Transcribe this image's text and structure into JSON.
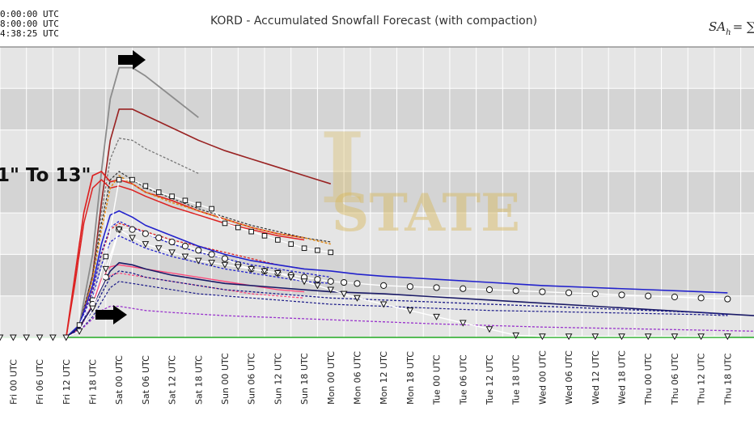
{
  "header": {
    "timestamps": [
      "0:00:00 UTC",
      "8:00:00 UTC",
      "4:38:25 UTC"
    ],
    "formula": "SA",
    "formula_sub": "h",
    "formula_rhs": "= ∑"
  },
  "annotation": {
    "text": "1\" To 13\""
  },
  "watermark": {
    "text": "STATE",
    "letter": "I"
  },
  "colors": {
    "plot_bg": "#e5e5e5",
    "band_dark": "#d4d4d4",
    "grid": "#ffffff",
    "zero_line": "#22aa22"
  },
  "chart_data": {
    "type": "line",
    "title": "KORD - Accumulated Snowfall Forecast (with compaction)",
    "xlabel": "",
    "ylabel": "",
    "x_ticks": [
      "Thu 18 UTC",
      "Fri 00 UTC",
      "Fri 06 UTC",
      "Fri 12 UTC",
      "Fri 18 UTC",
      "Sat 00 UTC",
      "Sat 06 UTC",
      "Sat 12 UTC",
      "Sat 18 UTC",
      "Sun 00 UTC",
      "Sun 06 UTC",
      "Sun 12 UTC",
      "Sun 18 UTC",
      "Mon 00 UTC",
      "Mon 06 UTC",
      "Mon 12 UTC",
      "Mon 18 UTC",
      "Tue 00 UTC",
      "Tue 06 UTC",
      "Tue 12 UTC",
      "Tue 18 UTC",
      "Wed 00 UTC",
      "Wed 06 UTC",
      "Wed 12 UTC",
      "Wed 18 UTC",
      "Thu 00 UTC",
      "Thu 06 UTC",
      "Thu 12 UTC",
      "Thu 18 UTC"
    ],
    "x_unit": "hours after Thu 18 UTC",
    "x_range": [
      -3,
      168
    ],
    "y_range": [
      0,
      14
    ],
    "grid": true,
    "legend": "none",
    "series": [
      {
        "color": "#8c8c8c",
        "width": 1.8,
        "dash": "",
        "x": [
          12,
          15,
          18,
          20,
          22,
          24,
          27,
          30,
          36,
          42
        ],
        "y": [
          0,
          0.6,
          4,
          8,
          11.5,
          13,
          13,
          12.6,
          11.6,
          10.6
        ]
      },
      {
        "color": "#992222",
        "width": 1.6,
        "dash": "",
        "x": [
          12,
          15,
          18,
          20,
          22,
          24,
          27,
          30,
          36,
          42,
          48,
          54,
          60,
          66,
          72
        ],
        "y": [
          0,
          0.5,
          3,
          6.5,
          9.5,
          11,
          11,
          10.7,
          10.1,
          9.5,
          9,
          8.6,
          8.2,
          7.8,
          7.4
        ]
      },
      {
        "color": "#777777",
        "width": 1.3,
        "dash": "3,2",
        "x": [
          12,
          15,
          18,
          20,
          22,
          24,
          27,
          30,
          36,
          42
        ],
        "y": [
          0,
          0.5,
          3,
          6,
          8.6,
          9.6,
          9.5,
          9.1,
          8.5,
          7.9
        ]
      },
      {
        "color": "#dd2222",
        "width": 1.7,
        "dash": "",
        "x": [
          12,
          14,
          16,
          18,
          20,
          22,
          24,
          27,
          30,
          36,
          42,
          48,
          54,
          60,
          66
        ],
        "y": [
          0,
          3,
          6,
          7.8,
          8,
          7.5,
          7.6,
          7.4,
          7,
          6.6,
          6.1,
          5.7,
          5.3,
          5,
          4.8
        ]
      },
      {
        "color": "#dd2222",
        "width": 1.5,
        "dash": "",
        "x": [
          12,
          14,
          16,
          18,
          20,
          22,
          24,
          27,
          30,
          36,
          42,
          48,
          54,
          60,
          66
        ],
        "y": [
          0,
          2.6,
          5.5,
          7.2,
          7.6,
          7.2,
          7.3,
          7.1,
          6.8,
          6.3,
          5.9,
          5.5,
          5.2,
          4.9,
          4.7
        ]
      },
      {
        "color": "#333333",
        "width": 1.2,
        "dash": "3,2",
        "x": [
          12,
          15,
          18,
          20,
          22,
          24,
          27,
          30,
          36,
          42,
          48,
          54,
          60,
          66,
          72
        ],
        "y": [
          0,
          0.6,
          3,
          5.5,
          7.6,
          8,
          7.6,
          7.2,
          6.7,
          6.2,
          5.8,
          5.4,
          5.1,
          4.8,
          4.6
        ]
      },
      {
        "color": "#e08c1e",
        "width": 1.6,
        "dash": "3,2",
        "x": [
          12,
          15,
          18,
          20,
          22,
          24,
          27,
          30,
          36,
          42,
          48,
          54,
          60,
          66,
          72
        ],
        "y": [
          0,
          0.5,
          2.8,
          5.2,
          7.2,
          7.8,
          7.4,
          7,
          6.5,
          6.1,
          5.7,
          5.3,
          5,
          4.8,
          4.5
        ]
      },
      {
        "color": "#dd2222",
        "width": 1.3,
        "dash": "3,2",
        "x": [
          12,
          15,
          18,
          20,
          22,
          24,
          27,
          30,
          36,
          42,
          48,
          54,
          60,
          66
        ],
        "y": [
          0,
          0.5,
          2.3,
          4,
          5.2,
          5.5,
          5.3,
          5.1,
          4.7,
          4.4,
          4.1,
          3.8,
          3.5,
          3.3
        ]
      },
      {
        "color": "#ff4477",
        "width": 1.3,
        "dash": "",
        "x": [
          12,
          15,
          18,
          20,
          22,
          24,
          27,
          30,
          36,
          42,
          48,
          54,
          60,
          66
        ],
        "y": [
          0,
          0.4,
          1.6,
          2.8,
          3.4,
          3.5,
          3.4,
          3.3,
          3.1,
          2.9,
          2.7,
          2.5,
          2.3,
          2.2
        ]
      },
      {
        "color": "#ff4477",
        "width": 1.2,
        "dash": "3,2",
        "x": [
          12,
          15,
          18,
          20,
          22,
          24,
          27,
          30,
          36,
          42,
          48,
          54,
          60,
          66
        ],
        "y": [
          0,
          0.3,
          1.4,
          2.5,
          3,
          3.1,
          3,
          2.9,
          2.7,
          2.5,
          2.3,
          2.1,
          2,
          1.9
        ]
      },
      {
        "color": "#2222cc",
        "width": 1.6,
        "dash": "",
        "x": [
          12,
          15,
          18,
          20,
          22,
          24,
          27,
          30,
          36,
          42,
          48,
          54,
          60,
          66,
          72,
          78,
          84,
          96,
          108,
          120,
          132,
          144,
          156,
          162
        ],
        "y": [
          0,
          0.6,
          2.5,
          4.5,
          5.9,
          6.1,
          5.8,
          5.4,
          4.9,
          4.4,
          4,
          3.7,
          3.5,
          3.3,
          3.2,
          3.05,
          2.95,
          2.8,
          2.65,
          2.5,
          2.4,
          2.3,
          2.2,
          2.15
        ]
      },
      {
        "color": "#2222cc",
        "width": 1.3,
        "dash": "3,2",
        "x": [
          12,
          15,
          18,
          20,
          22,
          24,
          27,
          30,
          36,
          42,
          48,
          54,
          60,
          66,
          72
        ],
        "y": [
          0,
          0.5,
          2.2,
          4.1,
          5.3,
          5.6,
          5.3,
          5,
          4.5,
          4.1,
          3.8,
          3.5,
          3.3,
          3.1,
          2.9
        ]
      },
      {
        "color": "#2222cc",
        "width": 1.3,
        "dash": "3,2",
        "x": [
          12,
          15,
          18,
          20,
          22,
          24,
          27,
          30,
          36,
          42,
          48,
          54,
          60,
          66,
          72
        ],
        "y": [
          0,
          0.4,
          1.9,
          3.5,
          4.6,
          4.9,
          4.6,
          4.3,
          3.9,
          3.6,
          3.3,
          3.1,
          2.9,
          2.7,
          2.6
        ]
      },
      {
        "color": "#1a1a66",
        "width": 1.6,
        "dash": "",
        "x": [
          12,
          15,
          18,
          20,
          22,
          24,
          27,
          30,
          36,
          42,
          48,
          60,
          72,
          84,
          96,
          108,
          120,
          132,
          144,
          156,
          168
        ],
        "y": [
          0,
          0.5,
          1.5,
          2.4,
          3.2,
          3.6,
          3.5,
          3.3,
          3,
          2.8,
          2.6,
          2.4,
          2.2,
          2.1,
          1.95,
          1.8,
          1.65,
          1.5,
          1.35,
          1.2,
          1.05
        ]
      },
      {
        "color": "#1a1a88",
        "width": 1.3,
        "dash": "3,2",
        "x": [
          12,
          15,
          18,
          20,
          22,
          24,
          27,
          30,
          36,
          42,
          48,
          60,
          72,
          84,
          96,
          108,
          120,
          132,
          144,
          156,
          162
        ],
        "y": [
          0,
          0.4,
          1.3,
          2.1,
          2.9,
          3.2,
          3.1,
          2.9,
          2.7,
          2.5,
          2.3,
          2.1,
          1.9,
          1.8,
          1.7,
          1.6,
          1.5,
          1.4,
          1.3,
          1.2,
          1.1
        ]
      },
      {
        "color": "#1a1a88",
        "width": 1.2,
        "dash": "3,2",
        "x": [
          12,
          15,
          18,
          20,
          22,
          24,
          27,
          30,
          36,
          42,
          48,
          60,
          72,
          84,
          96,
          108,
          120,
          132,
          144,
          156,
          162
        ],
        "y": [
          0,
          0.3,
          1,
          1.7,
          2.4,
          2.7,
          2.6,
          2.5,
          2.3,
          2.1,
          2,
          1.8,
          1.6,
          1.5,
          1.4,
          1.3,
          1.25,
          1.2,
          1.15,
          1.1,
          1.05
        ]
      },
      {
        "color": "#9933cc",
        "width": 1.3,
        "dash": "3,2",
        "x": [
          12,
          15,
          18,
          20,
          22,
          24,
          27,
          30,
          36,
          48,
          60,
          72,
          96,
          120,
          144,
          168
        ],
        "y": [
          0,
          0.3,
          0.9,
          1.3,
          1.5,
          1.5,
          1.4,
          1.3,
          1.2,
          1.05,
          0.95,
          0.85,
          0.65,
          0.5,
          0.4,
          0.3
        ]
      },
      {
        "color": "#ffffff",
        "width": 1.4,
        "dash": "",
        "marker": "square",
        "x": [
          15,
          18,
          21,
          24,
          27,
          30,
          33,
          36,
          39,
          42,
          45,
          48,
          51,
          54,
          57,
          60,
          63,
          66,
          69,
          72
        ],
        "y": [
          0.6,
          1.8,
          3.9,
          7.6,
          7.6,
          7.3,
          7,
          6.8,
          6.6,
          6.4,
          6.2,
          5.5,
          5.3,
          5.1,
          4.9,
          4.7,
          4.5,
          4.3,
          4.2,
          4.1
        ]
      },
      {
        "color": "#ffffff",
        "width": 1.4,
        "dash": "",
        "marker": "circle",
        "x": [
          18,
          21,
          24,
          27,
          30,
          33,
          36,
          39,
          42,
          45,
          48,
          51,
          54,
          57,
          60,
          63,
          66,
          69,
          72,
          75,
          78,
          84,
          90,
          96,
          102,
          108,
          114,
          120,
          126,
          132,
          138,
          144,
          150,
          156,
          162
        ],
        "y": [
          1.6,
          2.9,
          5.2,
          5.2,
          5,
          4.8,
          4.6,
          4.4,
          4.2,
          4,
          3.8,
          3.5,
          3.3,
          3.2,
          3.1,
          3,
          2.9,
          2.8,
          2.7,
          2.65,
          2.6,
          2.5,
          2.45,
          2.4,
          2.35,
          2.3,
          2.25,
          2.2,
          2.15,
          2.1,
          2.05,
          2,
          1.95,
          1.9,
          1.85
        ]
      },
      {
        "color": "#ffffff",
        "width": 1.4,
        "dash": "",
        "marker": "triangle",
        "x": [
          -3,
          0,
          3,
          6,
          9,
          12,
          15,
          18,
          21,
          24,
          27,
          30,
          33,
          36,
          39,
          42,
          45,
          48,
          51,
          54,
          57,
          60,
          63,
          66,
          69,
          72,
          75,
          78,
          84,
          90,
          96,
          102,
          108,
          114,
          120,
          126,
          132,
          138,
          144,
          150,
          156,
          162
        ],
        "y": [
          0,
          0,
          0,
          0,
          0,
          0,
          0.3,
          1.4,
          3.3,
          5.2,
          4.8,
          4.5,
          4.3,
          4.1,
          3.9,
          3.7,
          3.6,
          3.5,
          3.4,
          3.3,
          3.2,
          3.1,
          2.9,
          2.7,
          2.5,
          2.3,
          2.1,
          1.9,
          1.6,
          1.3,
          1,
          0.7,
          0.4,
          0.1,
          0.05,
          0.05,
          0.05,
          0.05,
          0.05,
          0.05,
          0.05,
          0.05
        ]
      }
    ]
  }
}
